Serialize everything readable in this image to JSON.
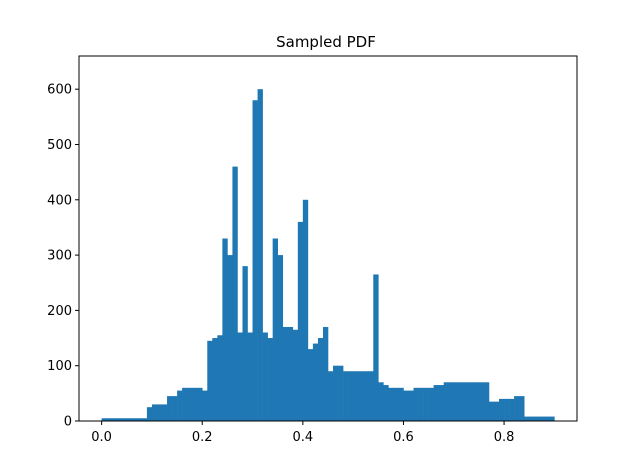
{
  "chart_data": {
    "type": "bar",
    "title": "Sampled PDF",
    "xlabel": "",
    "ylabel": "",
    "xlim": [
      -0.045,
      0.945
    ],
    "ylim": [
      0,
      660
    ],
    "x_ticks": [
      0.0,
      0.2,
      0.4,
      0.6,
      0.8
    ],
    "x_tick_labels": [
      "0.0",
      "0.2",
      "0.4",
      "0.6",
      "0.8"
    ],
    "y_ticks": [
      0,
      100,
      200,
      300,
      400,
      500,
      600
    ],
    "y_tick_labels": [
      "0",
      "100",
      "200",
      "300",
      "400",
      "500",
      "600"
    ],
    "grid": false,
    "legend": "none",
    "color": "#1f77b4",
    "bin_width": 0.01,
    "bin_left_edges": [
      0.0,
      0.01,
      0.02,
      0.03,
      0.04,
      0.05,
      0.06,
      0.07,
      0.08,
      0.09,
      0.1,
      0.11,
      0.12,
      0.13,
      0.14,
      0.15,
      0.16,
      0.17,
      0.18,
      0.19,
      0.2,
      0.21,
      0.22,
      0.23,
      0.24,
      0.25,
      0.26,
      0.27,
      0.28,
      0.29,
      0.3,
      0.31,
      0.32,
      0.33,
      0.34,
      0.35,
      0.36,
      0.37,
      0.38,
      0.39,
      0.4,
      0.41,
      0.42,
      0.43,
      0.44,
      0.45,
      0.46,
      0.47,
      0.48,
      0.49,
      0.5,
      0.51,
      0.52,
      0.53,
      0.54,
      0.55,
      0.56,
      0.57,
      0.58,
      0.59,
      0.6,
      0.61,
      0.62,
      0.63,
      0.64,
      0.65,
      0.66,
      0.67,
      0.68,
      0.69,
      0.7,
      0.71,
      0.72,
      0.73,
      0.74,
      0.75,
      0.76,
      0.77,
      0.78,
      0.79,
      0.8,
      0.81,
      0.82,
      0.83,
      0.84,
      0.85,
      0.86,
      0.87,
      0.88,
      0.89
    ],
    "values": [
      5,
      5,
      5,
      5,
      5,
      5,
      5,
      5,
      5,
      25,
      30,
      30,
      30,
      45,
      45,
      55,
      60,
      60,
      60,
      60,
      55,
      145,
      150,
      155,
      330,
      300,
      460,
      160,
      280,
      160,
      580,
      600,
      160,
      150,
      330,
      300,
      170,
      170,
      165,
      360,
      400,
      130,
      140,
      150,
      170,
      90,
      100,
      100,
      90,
      90,
      90,
      90,
      90,
      90,
      265,
      70,
      65,
      60,
      60,
      60,
      55,
      55,
      60,
      60,
      60,
      60,
      65,
      65,
      70,
      70,
      70,
      70,
      70,
      70,
      70,
      70,
      70,
      35,
      35,
      40,
      40,
      40,
      45,
      45,
      8,
      8,
      8,
      8,
      8,
      8
    ]
  }
}
